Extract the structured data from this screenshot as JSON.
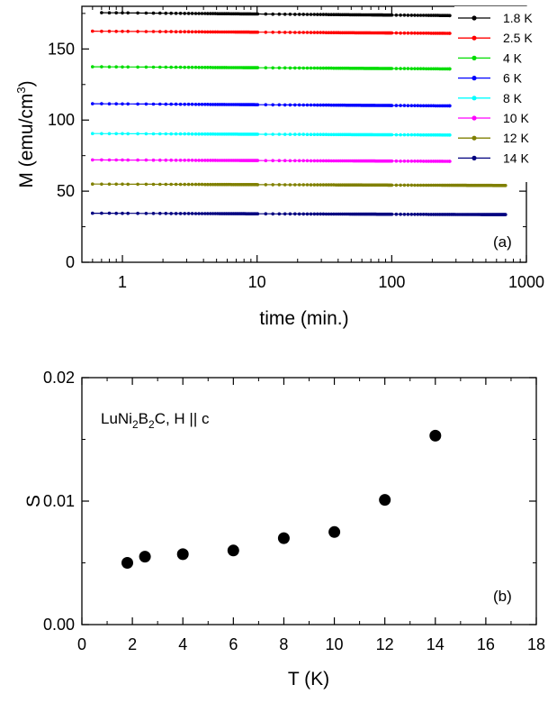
{
  "chart_data": [
    {
      "type": "scatter",
      "panel_label": "(a)",
      "xlabel": "time (min.)",
      "ylabel": "M (emu/cm",
      "ylabel_sup": "3",
      "ylabel_close": ")",
      "xscale": "log",
      "xlim": [
        0.5,
        1000
      ],
      "ylim": [
        0,
        180
      ],
      "xticks": [
        1,
        10,
        100,
        1000
      ],
      "xtick_labels": [
        "1",
        "10",
        "100",
        "1000"
      ],
      "yticks": [
        0,
        50,
        100,
        150
      ],
      "ytick_labels": [
        "0",
        "50",
        "100",
        "150"
      ],
      "legend_position": "top-right",
      "series": [
        {
          "name": "1.8 K",
          "color": "#000000",
          "m_start": 175.5,
          "m_end": 173.5,
          "t_start": 0.7,
          "t_end": 270
        },
        {
          "name": "2.5 K",
          "color": "#ff0000",
          "m_start": 162.5,
          "m_end": 161.0,
          "t_start": 0.6,
          "t_end": 270
        },
        {
          "name": "4 K",
          "color": "#00dd00",
          "m_start": 137.5,
          "m_end": 136.0,
          "t_start": 0.6,
          "t_end": 270
        },
        {
          "name": "6 K",
          "color": "#0000ff",
          "m_start": 111.5,
          "m_end": 110.0,
          "t_start": 0.6,
          "t_end": 270
        },
        {
          "name": "8 K",
          "color": "#00ffff",
          "m_start": 90.5,
          "m_end": 89.5,
          "t_start": 0.6,
          "t_end": 270
        },
        {
          "name": "10 K",
          "color": "#ff00ff",
          "m_start": 72.0,
          "m_end": 71.0,
          "t_start": 0.6,
          "t_end": 270
        },
        {
          "name": "12 K",
          "color": "#808000",
          "m_start": 55.0,
          "m_end": 54.0,
          "t_start": 0.6,
          "t_end": 700
        },
        {
          "name": "14 K",
          "color": "#000080",
          "m_start": 34.5,
          "m_end": 33.5,
          "t_start": 0.6,
          "t_end": 700
        }
      ]
    },
    {
      "type": "scatter",
      "panel_label": "(b)",
      "annotation": {
        "prefix": "LuNi",
        "sub1": "2",
        "mid": "B",
        "sub2": "2",
        "suffix": "C, H || c"
      },
      "xlabel": "T (K)",
      "ylabel": "S",
      "xlim": [
        0,
        18
      ],
      "ylim": [
        0,
        0.02
      ],
      "xticks": [
        0,
        2,
        4,
        6,
        8,
        10,
        12,
        14,
        16,
        18
      ],
      "xtick_labels": [
        "0",
        "2",
        "4",
        "6",
        "8",
        "10",
        "12",
        "14",
        "16",
        "18"
      ],
      "yticks": [
        0,
        0.01,
        0.02
      ],
      "ytick_labels": [
        "0.00",
        "0.01",
        "0.02"
      ],
      "marker_color": "#000000",
      "x": [
        1.8,
        2.5,
        4,
        6,
        8,
        10,
        12,
        14
      ],
      "y": [
        0.005,
        0.0055,
        0.0057,
        0.006,
        0.007,
        0.0075,
        0.0101,
        0.0153
      ]
    }
  ]
}
